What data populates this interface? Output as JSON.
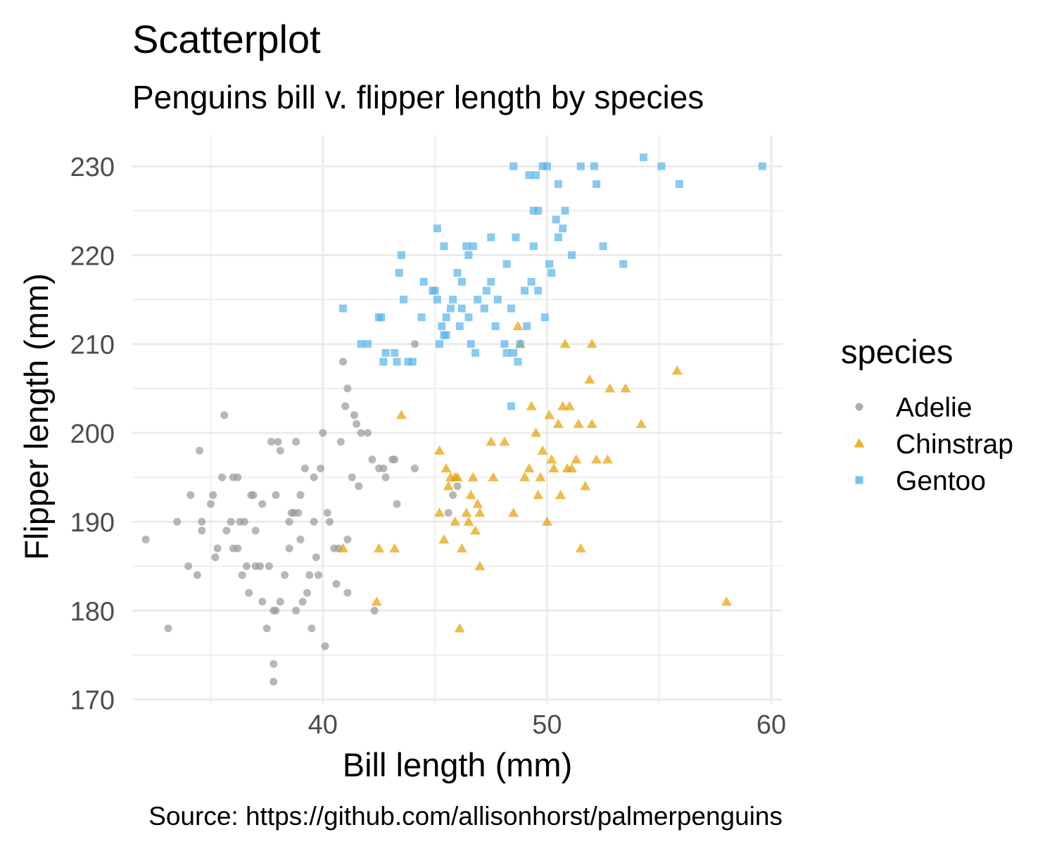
{
  "chart_data": {
    "type": "scatter",
    "title": "Scatterplot",
    "subtitle": "Penguins bill v. flipper length by species",
    "xlabel": "Bill length (mm)",
    "ylabel": "Flipper length (mm)",
    "caption": "Source: https://github.com/allisonhorst/palmerpenguins",
    "xlim": [
      31.5,
      60.5
    ],
    "ylim": [
      169.5,
      233.5
    ],
    "xticks": [
      40,
      50,
      60
    ],
    "yticks": [
      170,
      180,
      190,
      200,
      210,
      220,
      230
    ],
    "grid": true,
    "legend": {
      "title": "species",
      "position": "right"
    },
    "series": [
      {
        "name": "Adelie",
        "color": "#999999",
        "shape": "circle",
        "points": [
          [
            32.1,
            188
          ],
          [
            33.1,
            178
          ],
          [
            33.5,
            190
          ],
          [
            34.0,
            185
          ],
          [
            34.1,
            193
          ],
          [
            34.4,
            184
          ],
          [
            34.5,
            198
          ],
          [
            34.6,
            189
          ],
          [
            34.6,
            190
          ],
          [
            35.0,
            192
          ],
          [
            35.1,
            193
          ],
          [
            35.2,
            186
          ],
          [
            35.3,
            187
          ],
          [
            35.5,
            195
          ],
          [
            35.6,
            202
          ],
          [
            35.7,
            189
          ],
          [
            35.9,
            190
          ],
          [
            36.0,
            195
          ],
          [
            36.2,
            195
          ],
          [
            36.0,
            187
          ],
          [
            36.2,
            187
          ],
          [
            36.3,
            190
          ],
          [
            36.4,
            184
          ],
          [
            36.6,
            185
          ],
          [
            36.7,
            182
          ],
          [
            36.8,
            193
          ],
          [
            36.9,
            193
          ],
          [
            37.0,
            185
          ],
          [
            37.2,
            185
          ],
          [
            37.3,
            181
          ],
          [
            37.3,
            192
          ],
          [
            37.5,
            178
          ],
          [
            37.6,
            185
          ],
          [
            37.7,
            199
          ],
          [
            37.8,
            174
          ],
          [
            37.8,
            172
          ],
          [
            37.8,
            180
          ],
          [
            37.9,
            180
          ],
          [
            37.9,
            193
          ],
          [
            38.0,
            199
          ],
          [
            38.1,
            198
          ],
          [
            38.1,
            181
          ],
          [
            38.3,
            184
          ],
          [
            38.5,
            190
          ],
          [
            38.5,
            187
          ],
          [
            38.7,
            191
          ],
          [
            38.8,
            180
          ],
          [
            38.8,
            199
          ],
          [
            38.9,
            191
          ],
          [
            39.0,
            188
          ],
          [
            39.1,
            181
          ],
          [
            39.2,
            196
          ],
          [
            39.3,
            182
          ],
          [
            39.4,
            184
          ],
          [
            39.5,
            178
          ],
          [
            39.6,
            190
          ],
          [
            39.6,
            195
          ],
          [
            39.7,
            186
          ],
          [
            39.8,
            184
          ],
          [
            39.9,
            196
          ],
          [
            40.0,
            200
          ],
          [
            40.1,
            176
          ],
          [
            40.2,
            191
          ],
          [
            40.3,
            190
          ],
          [
            40.5,
            187
          ],
          [
            40.6,
            183
          ],
          [
            40.7,
            187
          ],
          [
            40.8,
            199
          ],
          [
            40.9,
            208
          ],
          [
            41.0,
            203
          ],
          [
            41.1,
            205
          ],
          [
            41.1,
            182
          ],
          [
            41.1,
            188
          ],
          [
            41.3,
            195
          ],
          [
            41.4,
            202
          ],
          [
            41.5,
            201
          ],
          [
            41.6,
            194
          ],
          [
            41.7,
            200
          ],
          [
            42.0,
            200
          ],
          [
            42.2,
            197
          ],
          [
            42.3,
            180
          ],
          [
            42.5,
            196
          ],
          [
            42.7,
            196
          ],
          [
            42.8,
            195
          ],
          [
            43.1,
            197
          ],
          [
            43.2,
            197
          ],
          [
            43.3,
            192
          ],
          [
            44.1,
            210
          ],
          [
            44.1,
            196
          ],
          [
            45.6,
            191
          ],
          [
            45.8,
            193
          ],
          [
            46.0,
            194
          ],
          [
            39.0,
            193
          ],
          [
            38.6,
            191
          ],
          [
            37.0,
            189
          ],
          [
            36.5,
            190
          ]
        ]
      },
      {
        "name": "Chinstrap",
        "color": "#E69F00",
        "shape": "triangle",
        "points": [
          [
            40.9,
            187
          ],
          [
            42.4,
            181
          ],
          [
            42.5,
            187
          ],
          [
            43.2,
            187
          ],
          [
            43.5,
            202
          ],
          [
            45.2,
            198
          ],
          [
            45.2,
            191
          ],
          [
            45.4,
            188
          ],
          [
            45.5,
            196
          ],
          [
            45.6,
            194
          ],
          [
            45.7,
            195
          ],
          [
            45.9,
            190
          ],
          [
            46.0,
            195
          ],
          [
            46.1,
            178
          ],
          [
            46.2,
            187
          ],
          [
            46.4,
            191
          ],
          [
            46.5,
            190
          ],
          [
            46.6,
            193
          ],
          [
            46.7,
            195
          ],
          [
            46.8,
            189
          ],
          [
            46.9,
            192
          ],
          [
            47.0,
            185
          ],
          [
            47.5,
            199
          ],
          [
            47.6,
            195
          ],
          [
            48.1,
            199
          ],
          [
            48.5,
            191
          ],
          [
            48.7,
            212
          ],
          [
            48.8,
            210
          ],
          [
            49.0,
            195
          ],
          [
            49.2,
            196
          ],
          [
            49.3,
            203
          ],
          [
            49.5,
            200
          ],
          [
            49.6,
            193
          ],
          [
            49.7,
            195
          ],
          [
            49.8,
            198
          ],
          [
            50.0,
            190
          ],
          [
            50.1,
            202
          ],
          [
            50.2,
            197
          ],
          [
            50.3,
            196
          ],
          [
            50.5,
            201
          ],
          [
            50.6,
            193
          ],
          [
            50.7,
            203
          ],
          [
            50.8,
            210
          ],
          [
            50.9,
            196
          ],
          [
            51.0,
            203
          ],
          [
            51.3,
            197
          ],
          [
            51.4,
            201
          ],
          [
            51.5,
            187
          ],
          [
            51.7,
            194
          ],
          [
            52.0,
            201
          ],
          [
            52.0,
            210
          ],
          [
            52.2,
            197
          ],
          [
            52.7,
            197
          ],
          [
            52.8,
            205
          ],
          [
            53.5,
            205
          ],
          [
            54.2,
            201
          ],
          [
            55.8,
            207
          ],
          [
            58.0,
            181
          ],
          [
            45.9,
            195
          ],
          [
            47.0,
            191
          ],
          [
            51.9,
            206
          ],
          [
            51.1,
            196
          ]
        ]
      },
      {
        "name": "Gentoo",
        "color": "#56B4E9",
        "shape": "square",
        "points": [
          [
            40.9,
            214
          ],
          [
            41.7,
            210
          ],
          [
            42.0,
            210
          ],
          [
            42.5,
            213
          ],
          [
            42.6,
            213
          ],
          [
            42.7,
            208
          ],
          [
            42.8,
            209
          ],
          [
            43.2,
            209
          ],
          [
            43.3,
            208
          ],
          [
            43.4,
            218
          ],
          [
            43.5,
            220
          ],
          [
            43.6,
            215
          ],
          [
            43.8,
            208
          ],
          [
            44.0,
            208
          ],
          [
            44.4,
            213
          ],
          [
            44.5,
            217
          ],
          [
            44.9,
            216
          ],
          [
            45.0,
            216
          ],
          [
            45.1,
            215
          ],
          [
            45.2,
            210
          ],
          [
            45.3,
            212
          ],
          [
            45.5,
            213
          ],
          [
            45.1,
            223
          ],
          [
            45.4,
            221
          ],
          [
            45.5,
            211
          ],
          [
            45.7,
            214
          ],
          [
            45.8,
            215
          ],
          [
            46.0,
            218
          ],
          [
            46.1,
            212
          ],
          [
            46.2,
            217
          ],
          [
            46.4,
            221
          ],
          [
            46.5,
            213
          ],
          [
            46.6,
            210
          ],
          [
            46.7,
            221
          ],
          [
            46.8,
            209
          ],
          [
            46.9,
            215
          ],
          [
            47.2,
            214
          ],
          [
            47.3,
            216
          ],
          [
            47.5,
            222
          ],
          [
            47.7,
            212
          ],
          [
            47.8,
            215
          ],
          [
            48.1,
            210
          ],
          [
            48.2,
            209
          ],
          [
            48.4,
            203
          ],
          [
            48.4,
            214
          ],
          [
            48.5,
            230
          ],
          [
            48.6,
            222
          ],
          [
            48.7,
            208
          ],
          [
            48.8,
            210
          ],
          [
            49.0,
            216
          ],
          [
            49.1,
            212
          ],
          [
            49.2,
            229
          ],
          [
            49.3,
            217
          ],
          [
            49.4,
            221
          ],
          [
            49.5,
            229
          ],
          [
            49.6,
            216
          ],
          [
            49.8,
            230
          ],
          [
            49.9,
            213
          ],
          [
            50.0,
            230
          ],
          [
            50.1,
            219
          ],
          [
            50.2,
            218
          ],
          [
            50.4,
            224
          ],
          [
            50.5,
            222
          ],
          [
            50.7,
            223
          ],
          [
            50.8,
            225
          ],
          [
            51.1,
            220
          ],
          [
            51.5,
            230
          ],
          [
            52.1,
            230
          ],
          [
            52.2,
            228
          ],
          [
            52.5,
            221
          ],
          [
            53.4,
            219
          ],
          [
            54.3,
            231
          ],
          [
            55.1,
            230
          ],
          [
            55.9,
            228
          ],
          [
            59.6,
            230
          ],
          [
            49.6,
            225
          ],
          [
            50.5,
            228
          ],
          [
            48.5,
            209
          ],
          [
            46.5,
            220
          ],
          [
            47.5,
            217
          ],
          [
            45.4,
            211
          ],
          [
            46.2,
            214
          ],
          [
            49.4,
            225
          ],
          [
            48.2,
            219
          ]
        ]
      }
    ]
  }
}
